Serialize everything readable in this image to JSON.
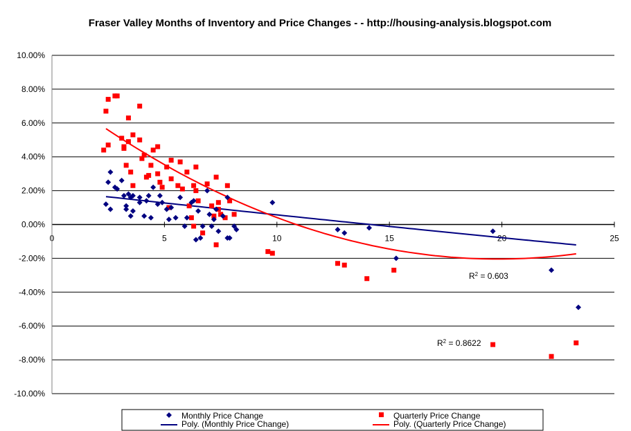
{
  "chart_data": {
    "type": "scatter",
    "title": "Fraser Valley Months of Inventory and Price Changes - - http://housing-analysis.blogspot.com",
    "xlabel": "",
    "ylabel": "",
    "xlim": [
      0,
      25
    ],
    "ylim": [
      -10,
      10
    ],
    "x_ticks": [
      "0",
      "5",
      "10",
      "15",
      "20",
      "25"
    ],
    "y_ticks": [
      "10.00%",
      "8.00%",
      "6.00%",
      "4.00%",
      "2.00%",
      "0.00%",
      "-2.00%",
      "-4.00%",
      "-6.00%",
      "-8.00%",
      "-10.00%"
    ],
    "grid": "horizontal",
    "legend_position": "bottom",
    "colors": {
      "monthly": "#000080",
      "quarterly": "#ff0000"
    },
    "series": [
      {
        "name": "Monthly Price Change",
        "marker": "diamond",
        "points": [
          [
            2.4,
            1.2
          ],
          [
            2.5,
            2.5
          ],
          [
            2.6,
            3.1
          ],
          [
            2.6,
            0.9
          ],
          [
            2.8,
            2.2
          ],
          [
            2.9,
            2.1
          ],
          [
            3.1,
            2.6
          ],
          [
            3.2,
            1.7
          ],
          [
            3.3,
            1.1
          ],
          [
            3.3,
            0.9
          ],
          [
            3.4,
            1.8
          ],
          [
            3.5,
            1.6
          ],
          [
            3.5,
            0.5
          ],
          [
            3.6,
            1.7
          ],
          [
            3.6,
            0.8
          ],
          [
            3.9,
            1.3
          ],
          [
            3.9,
            1.6
          ],
          [
            4.1,
            0.5
          ],
          [
            4.2,
            1.4
          ],
          [
            4.3,
            1.7
          ],
          [
            4.4,
            0.4
          ],
          [
            4.5,
            2.2
          ],
          [
            4.7,
            1.2
          ],
          [
            4.8,
            1.7
          ],
          [
            4.9,
            1.3
          ],
          [
            5.1,
            0.9
          ],
          [
            5.2,
            0.3
          ],
          [
            5.3,
            1.0
          ],
          [
            5.5,
            0.4
          ],
          [
            5.7,
            1.6
          ],
          [
            5.9,
            -0.1
          ],
          [
            6.0,
            0.4
          ],
          [
            6.2,
            1.3
          ],
          [
            6.3,
            1.4
          ],
          [
            6.4,
            -0.9
          ],
          [
            6.5,
            0.8
          ],
          [
            6.6,
            -0.8
          ],
          [
            6.7,
            -0.1
          ],
          [
            6.9,
            2.0
          ],
          [
            7.0,
            0.6
          ],
          [
            7.1,
            -0.1
          ],
          [
            7.2,
            0.3
          ],
          [
            7.3,
            0.9
          ],
          [
            7.4,
            -0.4
          ],
          [
            7.6,
            0.5
          ],
          [
            7.8,
            1.6
          ],
          [
            7.8,
            -0.8
          ],
          [
            7.9,
            -0.8
          ],
          [
            8.1,
            -0.1
          ],
          [
            8.2,
            -0.3
          ],
          [
            9.8,
            1.3
          ],
          [
            12.7,
            -0.3
          ],
          [
            13.0,
            -0.5
          ],
          [
            14.1,
            -0.2
          ],
          [
            15.3,
            -2.0
          ],
          [
            19.6,
            -0.4
          ],
          [
            22.2,
            -2.7
          ],
          [
            23.4,
            -4.9
          ]
        ]
      },
      {
        "name": "Quarterly Price Change",
        "marker": "square",
        "points": [
          [
            2.3,
            4.4
          ],
          [
            2.4,
            6.7
          ],
          [
            2.5,
            4.7
          ],
          [
            2.5,
            7.4
          ],
          [
            2.8,
            7.6
          ],
          [
            2.9,
            7.6
          ],
          [
            3.1,
            5.1
          ],
          [
            3.2,
            4.5
          ],
          [
            3.2,
            4.6
          ],
          [
            3.3,
            3.5
          ],
          [
            3.4,
            6.3
          ],
          [
            3.4,
            4.9
          ],
          [
            3.5,
            3.1
          ],
          [
            3.6,
            5.3
          ],
          [
            3.6,
            2.3
          ],
          [
            3.9,
            7.0
          ],
          [
            3.9,
            5.0
          ],
          [
            4.0,
            3.9
          ],
          [
            4.1,
            4.1
          ],
          [
            4.2,
            2.8
          ],
          [
            4.3,
            2.9
          ],
          [
            4.4,
            3.5
          ],
          [
            4.5,
            4.4
          ],
          [
            4.7,
            3.0
          ],
          [
            4.7,
            4.6
          ],
          [
            4.8,
            2.5
          ],
          [
            4.9,
            2.2
          ],
          [
            5.1,
            3.4
          ],
          [
            5.2,
            1.0
          ],
          [
            5.3,
            2.7
          ],
          [
            5.3,
            3.8
          ],
          [
            5.6,
            2.3
          ],
          [
            5.7,
            3.7
          ],
          [
            5.8,
            2.1
          ],
          [
            6.0,
            3.1
          ],
          [
            6.1,
            1.1
          ],
          [
            6.2,
            0.4
          ],
          [
            6.3,
            -0.1
          ],
          [
            6.3,
            2.3
          ],
          [
            6.4,
            2.0
          ],
          [
            6.4,
            3.4
          ],
          [
            6.5,
            1.4
          ],
          [
            6.7,
            -0.5
          ],
          [
            6.9,
            2.4
          ],
          [
            7.1,
            1.1
          ],
          [
            7.2,
            0.5
          ],
          [
            7.3,
            2.8
          ],
          [
            7.3,
            -1.2
          ],
          [
            7.4,
            1.3
          ],
          [
            7.4,
            0.9
          ],
          [
            7.5,
            0.6
          ],
          [
            7.7,
            0.4
          ],
          [
            7.8,
            2.3
          ],
          [
            7.9,
            1.4
          ],
          [
            8.1,
            0.6
          ],
          [
            9.6,
            -1.6
          ],
          [
            9.8,
            -1.7
          ],
          [
            12.7,
            -2.3
          ],
          [
            13.0,
            -2.4
          ],
          [
            14.0,
            -3.2
          ],
          [
            15.2,
            -2.7
          ],
          [
            19.6,
            -7.1
          ],
          [
            22.2,
            -7.8
          ],
          [
            23.3,
            -7.0
          ]
        ]
      }
    ],
    "trendlines": [
      {
        "name": "Poly. (Monthly Price Change)",
        "type": "polynomial",
        "x_range": [
          2.4,
          23.3
        ],
        "coefficients": [
          2.0,
          -0.147,
          0.0004
        ],
        "r2_label": "= 0.603"
      },
      {
        "name": "Poly. (Quarterly Price Change)",
        "type": "polynomial",
        "x_range": [
          2.4,
          23.3
        ],
        "coefficients": [
          7.94,
          -1.007,
          0.0254
        ],
        "r2_label": "= 0.8622"
      }
    ]
  }
}
